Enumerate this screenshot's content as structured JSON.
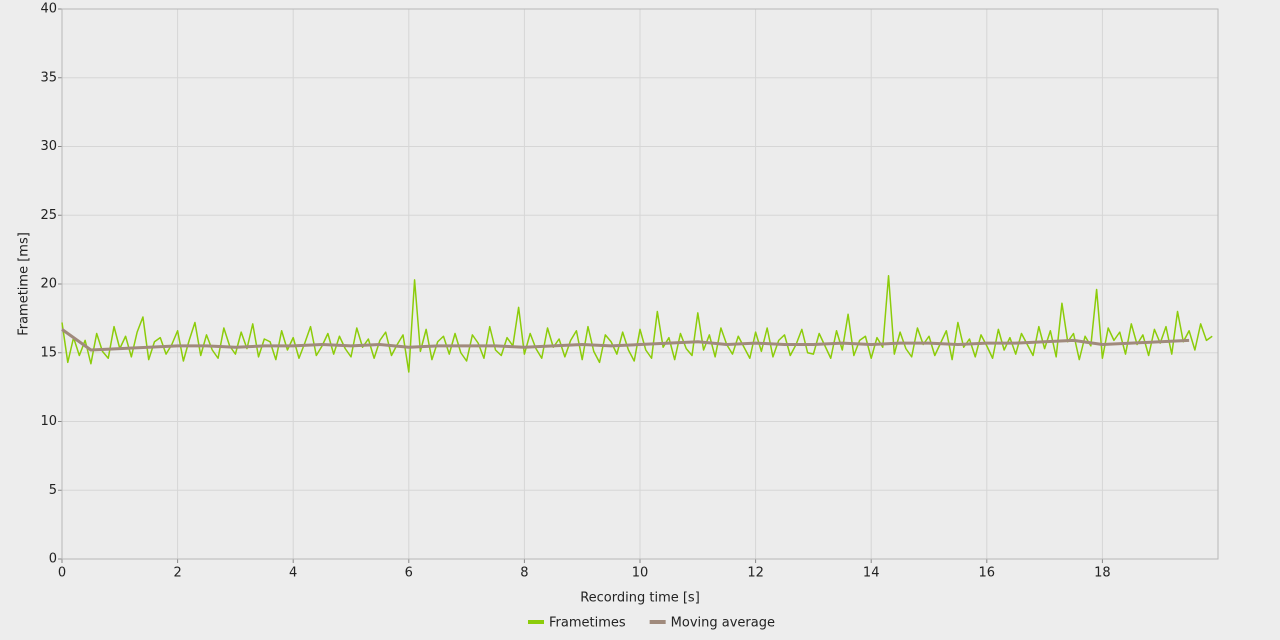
{
  "chart_data": {
    "type": "line",
    "xlabel": "Recording time [s]",
    "ylabel": "Frametime [ms]",
    "xlim": [
      0,
      20
    ],
    "ylim": [
      0,
      40
    ],
    "xticks": [
      0,
      2,
      4,
      6,
      8,
      10,
      12,
      14,
      16,
      18
    ],
    "yticks": [
      0,
      5,
      10,
      15,
      20,
      25,
      30,
      35,
      40
    ],
    "grid": true,
    "legend": "bottom",
    "series": [
      {
        "name": "Frametimes",
        "color": "#8ccc0a",
        "x": [
          0,
          0.1,
          0.2,
          0.3,
          0.4,
          0.5,
          0.6,
          0.7,
          0.8,
          0.9,
          1,
          1.1,
          1.2,
          1.3,
          1.4,
          1.5,
          1.6,
          1.7,
          1.8,
          1.9,
          2,
          2.1,
          2.2,
          2.3,
          2.4,
          2.5,
          2.6,
          2.7,
          2.8,
          2.9,
          3,
          3.1,
          3.2,
          3.3,
          3.4,
          3.5,
          3.6,
          3.7,
          3.8,
          3.9,
          4,
          4.1,
          4.2,
          4.3,
          4.4,
          4.5,
          4.6,
          4.7,
          4.8,
          4.9,
          5,
          5.1,
          5.2,
          5.3,
          5.4,
          5.5,
          5.6,
          5.7,
          5.8,
          5.9,
          6,
          6.1,
          6.2,
          6.3,
          6.4,
          6.5,
          6.6,
          6.7,
          6.8,
          6.9,
          7,
          7.1,
          7.2,
          7.3,
          7.4,
          7.5,
          7.6,
          7.7,
          7.8,
          7.9,
          8,
          8.1,
          8.2,
          8.3,
          8.4,
          8.5,
          8.6,
          8.7,
          8.8,
          8.9,
          9,
          9.1,
          9.2,
          9.3,
          9.4,
          9.5,
          9.6,
          9.7,
          9.8,
          9.9,
          10,
          10.1,
          10.2,
          10.3,
          10.4,
          10.5,
          10.6,
          10.7,
          10.8,
          10.9,
          11,
          11.1,
          11.2,
          11.3,
          11.4,
          11.5,
          11.6,
          11.7,
          11.8,
          11.9,
          12,
          12.1,
          12.2,
          12.3,
          12.4,
          12.5,
          12.6,
          12.7,
          12.8,
          12.9,
          13,
          13.1,
          13.2,
          13.3,
          13.4,
          13.5,
          13.6,
          13.7,
          13.8,
          13.9,
          14,
          14.1,
          14.2,
          14.3,
          14.4,
          14.5,
          14.6,
          14.7,
          14.8,
          14.9,
          15,
          15.1,
          15.2,
          15.3,
          15.4,
          15.5,
          15.6,
          15.7,
          15.8,
          15.9,
          16,
          16.1,
          16.2,
          16.3,
          16.4,
          16.5,
          16.6,
          16.7,
          16.8,
          16.9,
          17,
          17.1,
          17.2,
          17.3,
          17.4,
          17.5,
          17.6,
          17.7,
          17.8,
          17.9,
          18,
          18.1,
          18.2,
          18.3,
          18.4,
          18.5,
          18.6,
          18.7,
          18.8,
          18.9,
          19,
          19.1,
          19.2,
          19.3,
          19.4,
          19.5,
          19.6,
          19.7,
          19.8,
          19.9
        ],
        "values": [
          17.2,
          14.3,
          16.1,
          14.8,
          15.9,
          14.2,
          16.4,
          15.1,
          14.6,
          16.9,
          15.3,
          16.2,
          14.7,
          16.5,
          17.6,
          14.5,
          15.8,
          16.1,
          14.9,
          15.6,
          16.6,
          14.4,
          15.9,
          17.2,
          14.8,
          16.3,
          15.2,
          14.6,
          16.8,
          15.5,
          14.9,
          16.5,
          15.3,
          17.1,
          14.7,
          16.0,
          15.8,
          14.5,
          16.6,
          15.2,
          16.1,
          14.6,
          15.7,
          16.9,
          14.8,
          15.5,
          16.4,
          14.9,
          16.2,
          15.3,
          14.7,
          16.8,
          15.4,
          16.0,
          14.6,
          15.9,
          16.5,
          14.8,
          15.6,
          16.3,
          13.6,
          20.3,
          15.1,
          16.7,
          14.5,
          15.8,
          16.2,
          14.9,
          16.4,
          15.0,
          14.4,
          16.3,
          15.7,
          14.6,
          16.9,
          15.2,
          14.8,
          16.1,
          15.5,
          18.3,
          14.9,
          16.4,
          15.3,
          14.6,
          16.8,
          15.4,
          16.0,
          14.7,
          15.9,
          16.6,
          14.5,
          16.9,
          15.1,
          14.3,
          16.3,
          15.8,
          14.9,
          16.5,
          15.2,
          14.4,
          16.7,
          15.2,
          14.6,
          18.0,
          15.4,
          16.1,
          14.5,
          16.4,
          15.3,
          14.8,
          17.9,
          15.2,
          16.3,
          14.7,
          16.8,
          15.6,
          14.9,
          16.2,
          15.4,
          14.6,
          16.5,
          15.1,
          16.8,
          14.7,
          15.9,
          16.3,
          14.8,
          15.6,
          16.7,
          15.0,
          14.9,
          16.4,
          15.5,
          14.6,
          16.6,
          15.2,
          17.8,
          14.8,
          15.9,
          16.2,
          14.6,
          16.1,
          15.4,
          20.6,
          14.9,
          16.5,
          15.3,
          14.7,
          16.8,
          15.6,
          16.2,
          14.8,
          15.7,
          16.6,
          14.5,
          17.2,
          15.4,
          16.0,
          14.7,
          16.3,
          15.5,
          14.6,
          16.7,
          15.2,
          16.1,
          14.9,
          16.4,
          15.6,
          14.8,
          16.9,
          15.3,
          16.6,
          14.7,
          18.6,
          15.8,
          16.4,
          14.5,
          16.2,
          15.5,
          19.6,
          14.6,
          16.8,
          15.9,
          16.5,
          14.9,
          17.1,
          15.6,
          16.3,
          14.8,
          16.7,
          15.7,
          16.9,
          14.9,
          18.0,
          15.8,
          16.6,
          15.2,
          17.1,
          15.9,
          16.2
        ]
      },
      {
        "name": "Moving average",
        "color": "#a08a7c",
        "x": [
          0,
          0.5,
          1,
          1.5,
          2,
          2.5,
          3,
          3.5,
          4,
          4.5,
          5,
          5.5,
          6,
          6.5,
          7,
          7.5,
          8,
          8.5,
          9,
          9.5,
          10,
          10.5,
          11,
          11.5,
          12,
          12.5,
          13,
          13.5,
          14,
          14.5,
          15,
          15.5,
          16,
          16.5,
          17,
          17.5,
          18,
          18.5,
          19,
          19.5
        ],
        "values": [
          16.7,
          15.2,
          15.3,
          15.4,
          15.5,
          15.5,
          15.4,
          15.5,
          15.5,
          15.6,
          15.5,
          15.6,
          15.4,
          15.5,
          15.5,
          15.5,
          15.4,
          15.5,
          15.6,
          15.5,
          15.6,
          15.7,
          15.8,
          15.6,
          15.7,
          15.6,
          15.6,
          15.7,
          15.6,
          15.7,
          15.7,
          15.6,
          15.7,
          15.7,
          15.8,
          15.9,
          15.6,
          15.7,
          15.8,
          15.9
        ]
      }
    ]
  }
}
